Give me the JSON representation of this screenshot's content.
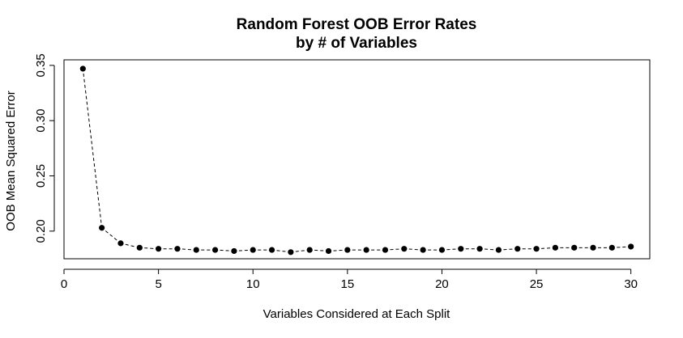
{
  "chart_data": {
    "type": "line",
    "title": "Random Forest OOB Error Rates",
    "subtitle": "by # of Variables",
    "xlabel": "Variables Considered at Each Split",
    "ylabel": "OOB Mean Squared Error",
    "xlim": [
      0,
      31
    ],
    "ylim": [
      0.175,
      0.355
    ],
    "xticks": [
      0,
      5,
      10,
      15,
      20,
      25,
      30
    ],
    "xtick_labels": [
      "0",
      "5",
      "10",
      "15",
      "20",
      "25",
      "30"
    ],
    "yticks": [
      0.2,
      0.25,
      0.3,
      0.35
    ],
    "ytick_labels": [
      "0.20",
      "0.25",
      "0.30",
      "0.35"
    ],
    "grid": false,
    "line_style": "dashed",
    "marker": "filled-circle",
    "series": [
      {
        "x": [
          1,
          2,
          3,
          4,
          5,
          6,
          7,
          8,
          9,
          10,
          11,
          12,
          13,
          14,
          15,
          16,
          17,
          18,
          19,
          20,
          21,
          22,
          23,
          24,
          25,
          26,
          27,
          28,
          29,
          30
        ],
        "y": [
          0.347,
          0.203,
          0.189,
          0.185,
          0.184,
          0.184,
          0.183,
          0.183,
          0.182,
          0.183,
          0.183,
          0.181,
          0.183,
          0.182,
          0.183,
          0.183,
          0.183,
          0.184,
          0.183,
          0.183,
          0.184,
          0.184,
          0.183,
          0.184,
          0.184,
          0.185,
          0.185,
          0.185,
          0.185,
          0.186
        ]
      }
    ]
  }
}
